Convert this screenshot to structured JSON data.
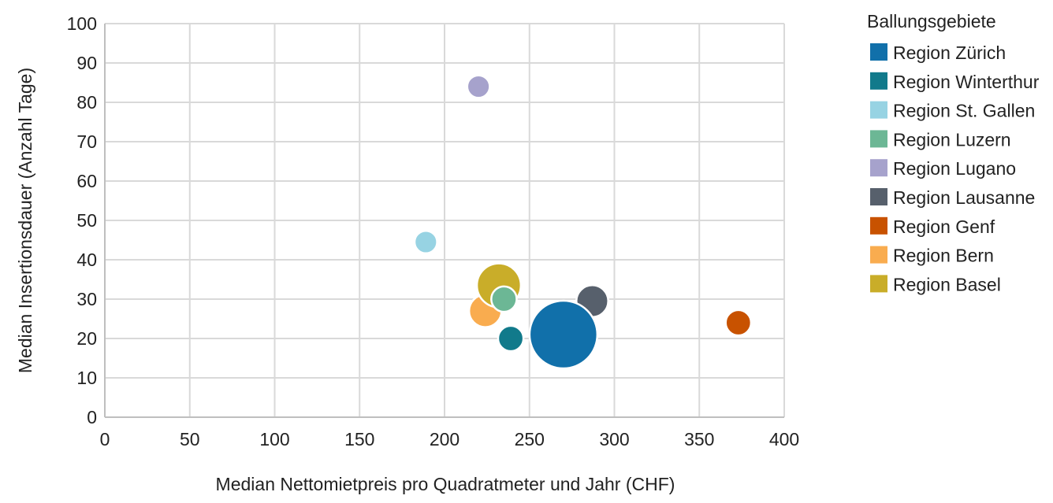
{
  "chart_data": {
    "type": "bubble",
    "xlabel": "Median Nettomietpreis pro Quadratmeter und Jahr (CHF)",
    "ylabel": "Median Insertionsdauer (Anzahl Tage)",
    "xlim": [
      0,
      400
    ],
    "ylim": [
      0,
      100
    ],
    "x_ticks": [
      0,
      50,
      100,
      150,
      200,
      250,
      300,
      350,
      400
    ],
    "y_ticks": [
      0,
      10,
      20,
      30,
      40,
      50,
      60,
      70,
      80,
      90,
      100
    ],
    "x_tick_labels": [
      "0",
      "50",
      "100",
      "150",
      "200",
      "250",
      "300",
      "350",
      "400"
    ],
    "y_tick_labels": [
      "0",
      "10",
      "20",
      "30",
      "40",
      "50",
      "60",
      "70",
      "80",
      "90",
      "100"
    ],
    "grid": true,
    "legend": {
      "title": "Ballungsgebiete",
      "position": "right"
    },
    "series": [
      {
        "name": "Region Zürich",
        "color": "#1170aa",
        "x": 270,
        "y": 21,
        "size": 100
      },
      {
        "name": "Region Winterthur",
        "color": "#117a8b",
        "x": 239,
        "y": 20,
        "size": 14
      },
      {
        "name": "Region St. Gallen",
        "color": "#97d3e3",
        "x": 189,
        "y": 44.5,
        "size": 11
      },
      {
        "name": "Region Luzern",
        "color": "#6cb795",
        "x": 235,
        "y": 30,
        "size": 14
      },
      {
        "name": "Region Lugano",
        "color": "#a6a2cc",
        "x": 220,
        "y": 84,
        "size": 11
      },
      {
        "name": "Region Lausanne",
        "color": "#57606c",
        "x": 287,
        "y": 29.5,
        "size": 22
      },
      {
        "name": "Region Genf",
        "color": "#c85200",
        "x": 373,
        "y": 24,
        "size": 14
      },
      {
        "name": "Region Bern",
        "color": "#f9ac4f",
        "x": 224,
        "y": 27,
        "size": 23
      },
      {
        "name": "Region Basel",
        "color": "#c9ad29",
        "x": 232,
        "y": 33.5,
        "size": 42
      }
    ],
    "draw_order": [
      7,
      8,
      5,
      3,
      1,
      0,
      2,
      4,
      6
    ]
  }
}
